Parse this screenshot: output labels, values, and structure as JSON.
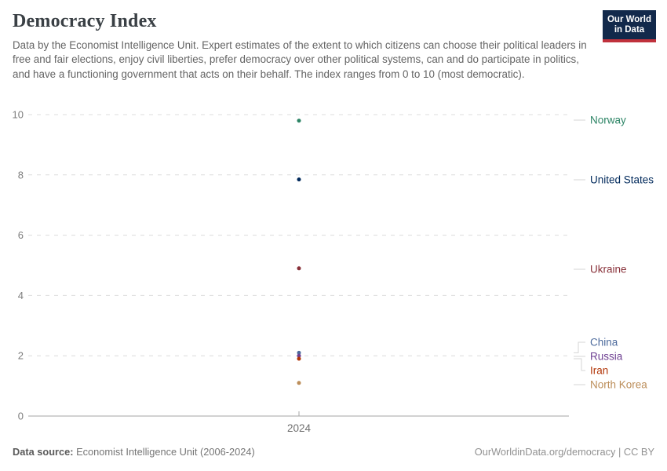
{
  "header": {
    "title": "Democracy Index",
    "subtitle": "Data by the Economist Intelligence Unit. Expert estimates of the extent to which citizens can choose their political leaders in free and fair elections, enjoy civil liberties, prefer democracy over other political systems, can and do participate in politics, and have a functioning government that acts on their behalf. The index ranges from 0 to 10 (most democratic)."
  },
  "logo": {
    "line1": "Our World",
    "line2": "in Data",
    "bg_color": "#12294B",
    "bar_color": "#C0313C"
  },
  "chart_data": {
    "type": "scatter",
    "title": "Democracy Index",
    "xlabel": "",
    "ylabel": "",
    "x_tick_label": "2024",
    "categories": [
      "2024"
    ],
    "ylim": [
      0,
      10
    ],
    "yticks": [
      0,
      2,
      4,
      6,
      8,
      10
    ],
    "grid": true,
    "legend_position": "right-labels",
    "series": [
      {
        "name": "Norway",
        "value": 9.8,
        "color": "#2C8465"
      },
      {
        "name": "United States",
        "value": 7.85,
        "color": "#00295B"
      },
      {
        "name": "Ukraine",
        "value": 4.9,
        "color": "#883039"
      },
      {
        "name": "China",
        "value": 2.1,
        "color": "#4C6A9C"
      },
      {
        "name": "Russia",
        "value": 2.0,
        "color": "#6D3E91"
      },
      {
        "name": "Iran",
        "value": 1.9,
        "color": "#B13507"
      },
      {
        "name": "North Korea",
        "value": 1.1,
        "color": "#BC8E5A"
      }
    ]
  },
  "footer": {
    "source_label": "Data source:",
    "source_text": " Economist Intelligence Unit (2006-2024)",
    "credit": "OurWorldinData.org/democracy | CC BY"
  }
}
